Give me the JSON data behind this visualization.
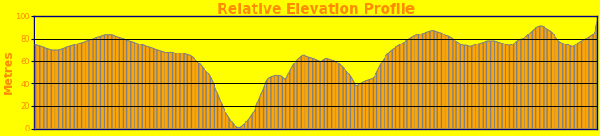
{
  "title": "Relative Elevation Profile",
  "title_color": "#FF8C00",
  "title_fontsize": 11,
  "ylabel": "Metres",
  "ylabel_color": "#FF8C00",
  "ylabel_fontsize": 9,
  "ylim": [
    0,
    100
  ],
  "yticks": [
    0,
    20,
    40,
    60,
    80,
    100
  ],
  "background_color": "#FFFF00",
  "fill_color": "#FFA500",
  "line_edge_color": "#808080",
  "hline_color": "#000000",
  "border_color": "#000080",
  "elevation_y": [
    75,
    74,
    73,
    72,
    71,
    70,
    70,
    70,
    71,
    72,
    73,
    74,
    75,
    76,
    77,
    78,
    79,
    80,
    81,
    82,
    83,
    83,
    83,
    82,
    81,
    80,
    79,
    78,
    77,
    76,
    75,
    74,
    73,
    72,
    71,
    70,
    69,
    68,
    68,
    68,
    67,
    67,
    67,
    66,
    65,
    63,
    60,
    57,
    53,
    50,
    45,
    38,
    30,
    22,
    15,
    10,
    5,
    2,
    1,
    3,
    6,
    10,
    15,
    22,
    30,
    38,
    44,
    46,
    47,
    47,
    46,
    44,
    50,
    56,
    60,
    63,
    65,
    64,
    63,
    62,
    61,
    60,
    62,
    62,
    61,
    60,
    58,
    55,
    52,
    48,
    43,
    38,
    40,
    42,
    43,
    44,
    46,
    52,
    58,
    63,
    67,
    70,
    72,
    74,
    76,
    78,
    80,
    82,
    83,
    84,
    85,
    86,
    87,
    87,
    86,
    85,
    83,
    82,
    80,
    78,
    76,
    74,
    74,
    73,
    74,
    75,
    76,
    77,
    78,
    78,
    78,
    77,
    76,
    75,
    74,
    75,
    77,
    79,
    80,
    82,
    85,
    88,
    90,
    91,
    90,
    88,
    86,
    82,
    78,
    76,
    75,
    74,
    73,
    75,
    77,
    79,
    80,
    82,
    85,
    96
  ]
}
